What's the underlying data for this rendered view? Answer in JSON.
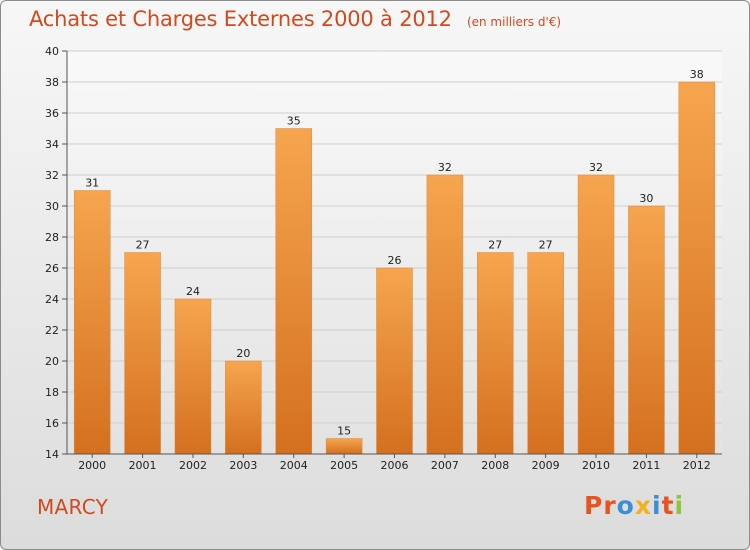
{
  "header": {
    "title": "Achats et Charges Externes 2000 à 2012",
    "unit_note": "(en milliers d'€)"
  },
  "footer": {
    "commune": "MARCY",
    "brand": "Proxiti"
  },
  "colors": {
    "title": "#d04a1e",
    "bar_light": "#f6a54e",
    "bar_dark": "#d4701f",
    "grid": "#cfcfcf",
    "brand_letters": [
      "#e8541f",
      "#e8541f",
      "#3b8fd4",
      "#f2b21e",
      "#3b8fd4",
      "#e8541f",
      "#8cc63f"
    ]
  },
  "chart_data": {
    "type": "bar",
    "categories": [
      "2000",
      "2001",
      "2002",
      "2003",
      "2004",
      "2005",
      "2006",
      "2007",
      "2008",
      "2009",
      "2010",
      "2011",
      "2012"
    ],
    "values": [
      31,
      27,
      24,
      20,
      35,
      15,
      26,
      32,
      27,
      27,
      32,
      30,
      38
    ],
    "title": "Achats et Charges Externes 2000 à 2012",
    "xlabel": "",
    "ylabel": "",
    "ylim": [
      14,
      40
    ],
    "yticks": [
      14,
      16,
      18,
      20,
      22,
      24,
      26,
      28,
      30,
      32,
      34,
      36,
      38,
      40
    ],
    "grid": true,
    "data_labels": true
  }
}
